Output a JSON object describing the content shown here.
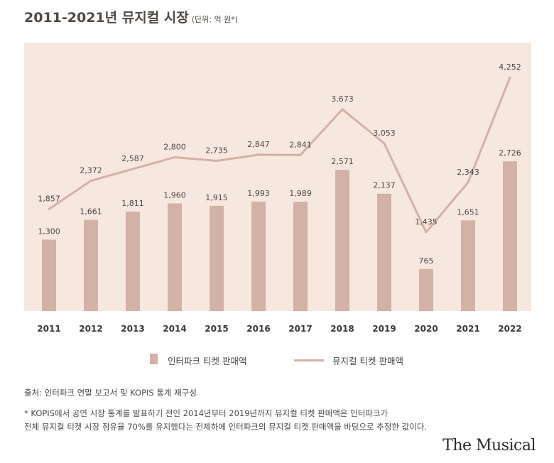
{
  "title": "2011-2021년 뮤지컬 시장",
  "unit": "(단위: 억 원*)",
  "chart_data": {
    "type": "bar+line",
    "categories": [
      "2011",
      "2012",
      "2013",
      "2014",
      "2015",
      "2016",
      "2017",
      "2018",
      "2019",
      "2020",
      "2021",
      "2022"
    ],
    "series": [
      {
        "name": "인터파크 티켓 판매액",
        "type": "bar",
        "values": [
          1300,
          1661,
          1811,
          1960,
          1915,
          1993,
          1989,
          2571,
          2137,
          765,
          1651,
          2726
        ],
        "labels": [
          "1,300",
          "1,661",
          "1,811",
          "1,960",
          "1,915",
          "1,993",
          "1,989",
          "2,571",
          "2,137",
          "765",
          "1,651",
          "2,726"
        ]
      },
      {
        "name": "뮤지컬 티켓 판매액",
        "type": "line",
        "values": [
          1857,
          2372,
          2587,
          2800,
          2735,
          2847,
          2841,
          3673,
          3053,
          1435,
          2343,
          4252
        ],
        "labels": [
          "1,857",
          "2,372",
          "2,587",
          "2,800",
          "2,735",
          "2,847",
          "2,841",
          "3,673",
          "3,053",
          "1,435",
          "2,343",
          "4,252"
        ]
      }
    ],
    "ylim": [
      0,
      4500
    ],
    "colors": {
      "bar": "#d2b2a6",
      "line": "#d2b2a6",
      "panel": "#f6e7df"
    }
  },
  "legend": {
    "bar_label": "인터파크 티켓 판매액",
    "line_label": "뮤지컬 티켓 판매액"
  },
  "source": "출처: 인터파크 연말 보고서 및 KOPIS 통계 재구성",
  "note_line1": "* KOPIS에서 공연 시장 통계를 발표하기 전인 2014년부터 2019년까지 뮤지컬 티켓 판매액은 인터파크가",
  "note_line2": "전체 뮤지컬 티켓 시장 점유율 70%를 유지했다는 전제하에 인터파크의 뮤지컬 티켓 판매액을 바탕으로 추정한 값이다.",
  "logo": "The Musical"
}
